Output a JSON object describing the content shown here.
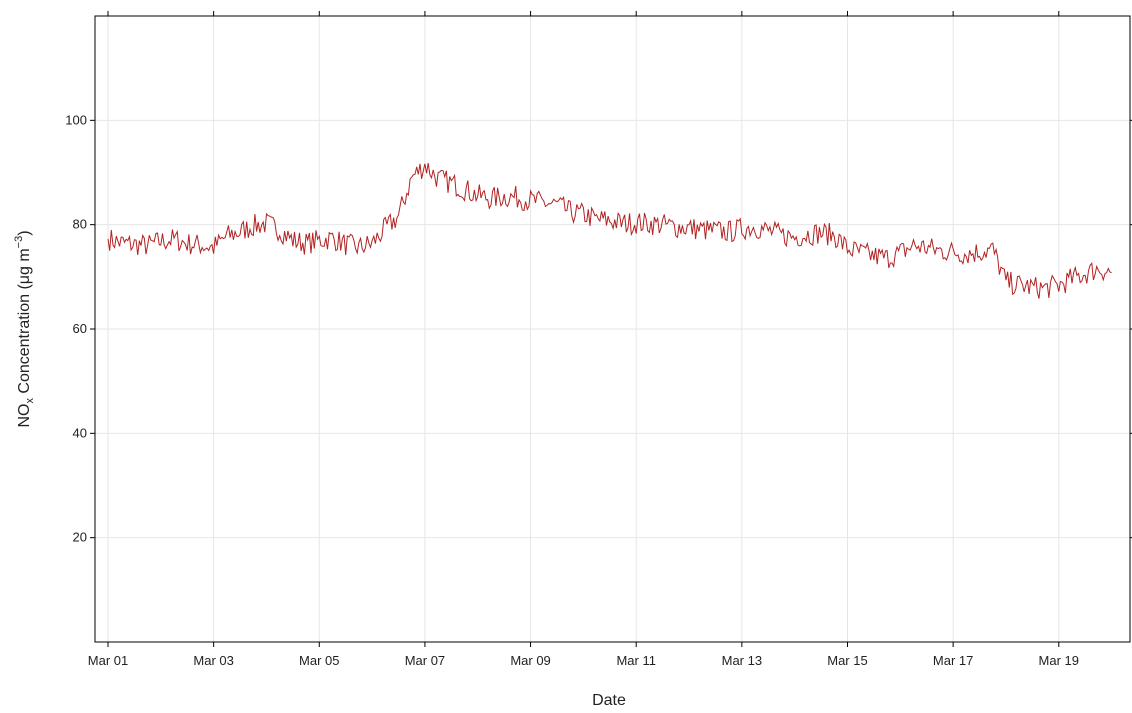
{
  "chart_data": {
    "type": "line",
    "title": "",
    "xlabel": "Date",
    "ylabel": {
      "prefix": "NO",
      "subscript": "x",
      "middle": " Concentration (",
      "unit": "μg m",
      "superscript": "−3",
      "suffix": ")"
    },
    "ylim": [
      0,
      120
    ],
    "xlim": [
      "2021-03-01",
      "2021-03-20T02:00"
    ],
    "grid": true,
    "line_color": "#b22222",
    "grid_color": "#e6e6e6",
    "yticks": [
      20,
      40,
      60,
      80,
      100
    ],
    "yticklabels": [
      "20",
      "40",
      "60",
      "80",
      "100"
    ],
    "xticks": [
      "2021-03-01",
      "2021-03-03",
      "2021-03-05",
      "2021-03-07",
      "2021-03-09",
      "2021-03-11",
      "2021-03-13",
      "2021-03-15",
      "2021-03-17",
      "2021-03-19"
    ],
    "xticklabels": [
      "Mar 01",
      "Mar 03",
      "Mar 05",
      "Mar 07",
      "Mar 09",
      "Mar 11",
      "Mar 13",
      "Mar 15",
      "Mar 17",
      "Mar 19"
    ],
    "series": [
      {
        "x": [
          "2021-03-01T00:00",
          "2021-03-01T06:00",
          "2021-03-01T12:00",
          "2021-03-01T18:00",
          "2021-03-02T00:00",
          "2021-03-02T06:00",
          "2021-03-02T12:00",
          "2021-03-02T18:00",
          "2021-03-03T00:00",
          "2021-03-03T06:00",
          "2021-03-03T12:00",
          "2021-03-03T18:00",
          "2021-03-04T00:00",
          "2021-03-04T06:00",
          "2021-03-04T12:00",
          "2021-03-04T18:00",
          "2021-03-05T00:00",
          "2021-03-05T06:00",
          "2021-03-05T12:00",
          "2021-03-05T18:00",
          "2021-03-06T00:00",
          "2021-03-06T06:00",
          "2021-03-06T12:00",
          "2021-03-06T18:00",
          "2021-03-07T00:00",
          "2021-03-07T06:00",
          "2021-03-07T12:00",
          "2021-03-07T18:00",
          "2021-03-08T00:00",
          "2021-03-08T06:00",
          "2021-03-08T12:00",
          "2021-03-08T18:00",
          "2021-03-09T00:00",
          "2021-03-09T06:00",
          "2021-03-09T12:00",
          "2021-03-09T18:00",
          "2021-03-10T00:00",
          "2021-03-10T06:00",
          "2021-03-10T12:00",
          "2021-03-10T18:00",
          "2021-03-11T00:00",
          "2021-03-11T06:00",
          "2021-03-11T12:00",
          "2021-03-11T18:00",
          "2021-03-12T00:00",
          "2021-03-12T06:00",
          "2021-03-12T12:00",
          "2021-03-12T18:00",
          "2021-03-13T00:00",
          "2021-03-13T06:00",
          "2021-03-13T12:00",
          "2021-03-13T18:00",
          "2021-03-14T00:00",
          "2021-03-14T06:00",
          "2021-03-14T12:00",
          "2021-03-14T18:00",
          "2021-03-15T00:00",
          "2021-03-15T06:00",
          "2021-03-15T12:00",
          "2021-03-15T18:00",
          "2021-03-16T00:00",
          "2021-03-16T06:00",
          "2021-03-16T12:00",
          "2021-03-16T18:00",
          "2021-03-17T00:00",
          "2021-03-17T06:00",
          "2021-03-17T12:00",
          "2021-03-17T18:00",
          "2021-03-18T00:00",
          "2021-03-18T06:00",
          "2021-03-18T12:00",
          "2021-03-18T18:00",
          "2021-03-19T00:00",
          "2021-03-19T06:00",
          "2021-03-19T12:00",
          "2021-03-19T18:00",
          "2021-03-20T00:00"
        ],
        "y": [
          77.3,
          76.5,
          76.2,
          76.0,
          76.8,
          77.2,
          76.4,
          76.1,
          75.6,
          77.8,
          78.6,
          79.8,
          80.2,
          79.0,
          77.0,
          76.4,
          77.0,
          77.4,
          76.2,
          75.6,
          76.4,
          79.2,
          81.6,
          89.0,
          91.5,
          88.8,
          88.0,
          86.8,
          85.6,
          85.0,
          85.4,
          85.2,
          84.6,
          84.2,
          83.8,
          82.4,
          82.0,
          81.0,
          80.8,
          80.2,
          80.4,
          80.2,
          80.0,
          79.6,
          79.4,
          79.0,
          78.8,
          78.6,
          79.2,
          79.6,
          78.8,
          78.0,
          77.6,
          78.2,
          78.4,
          78.0,
          75.4,
          74.6,
          74.0,
          73.6,
          74.6,
          76.0,
          75.6,
          75.0,
          74.8,
          74.4,
          74.8,
          75.2,
          69.0,
          68.4,
          68.0,
          67.8,
          68.4,
          69.6,
          70.6,
          71.6,
          70.8
        ],
        "ripple": 2.2
      }
    ]
  }
}
